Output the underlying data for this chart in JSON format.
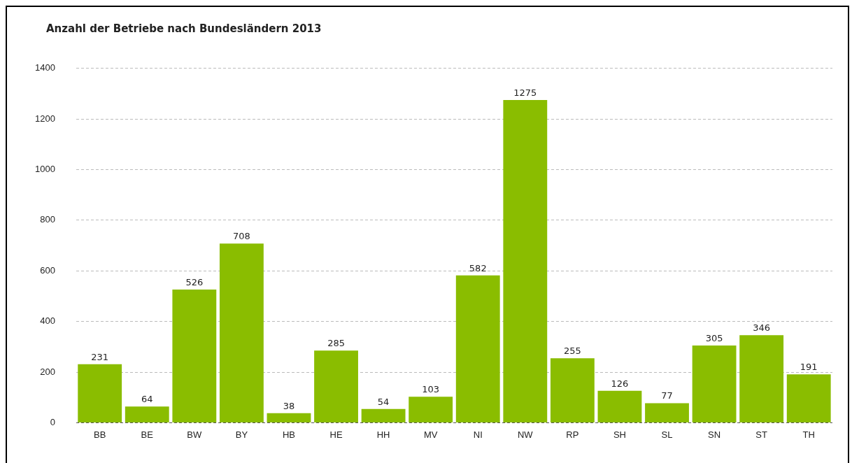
{
  "chart_data": {
    "type": "bar",
    "title": "Anzahl der Betriebe nach Bundesländern 2013",
    "categories": [
      "BB",
      "BE",
      "BW",
      "BY",
      "HB",
      "HE",
      "HH",
      "MV",
      "NI",
      "NW",
      "RP",
      "SH",
      "SL",
      "SN",
      "ST",
      "TH"
    ],
    "values": [
      231,
      64,
      526,
      708,
      38,
      285,
      54,
      103,
      582,
      1275,
      255,
      126,
      77,
      305,
      346,
      191
    ],
    "color": "#8abd00",
    "ylim": [
      0,
      1400
    ],
    "yticks": [
      0,
      200,
      400,
      600,
      800,
      1000,
      1200,
      1400
    ],
    "grid": "y",
    "data_labels": true,
    "legend": false
  }
}
